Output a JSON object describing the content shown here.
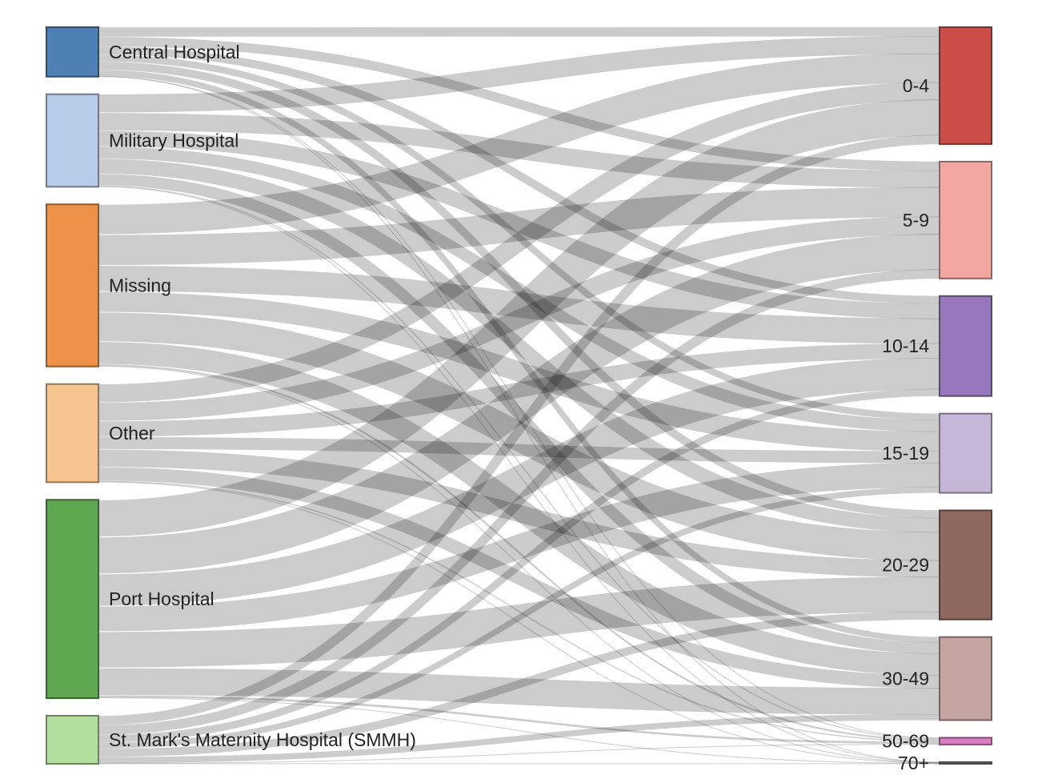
{
  "chart_data": {
    "type": "sankey",
    "source_nodes": [
      {
        "name": "Central Hospital",
        "color": "#4e7fb5"
      },
      {
        "name": "Military Hospital",
        "color": "#b8cbe8"
      },
      {
        "name": "Missing",
        "color": "#ef9249"
      },
      {
        "name": "Other",
        "color": "#f6c48f"
      },
      {
        "name": "Port Hospital",
        "color": "#5fa751"
      },
      {
        "name": "St. Mark's Maternity Hospital (SMMH)",
        "color": "#b2de9e"
      }
    ],
    "target_nodes": [
      {
        "name": "0-4",
        "color": "#cb4f48"
      },
      {
        "name": "5-9",
        "color": "#f3a6a2"
      },
      {
        "name": "10-14",
        "color": "#9778bd"
      },
      {
        "name": "15-19",
        "color": "#c6b6d7"
      },
      {
        "name": "20-29",
        "color": "#8e675e"
      },
      {
        "name": "30-49",
        "color": "#c5a59f"
      },
      {
        "name": "50-69",
        "color": "#da7ec2"
      },
      {
        "name": "70+",
        "color": "#7f7f7f"
      }
    ],
    "links": [
      {
        "source": "Central Hospital",
        "target": "0-4",
        "value": 70
      },
      {
        "source": "Central Hospital",
        "target": "5-9",
        "value": 70
      },
      {
        "source": "Central Hospital",
        "target": "10-14",
        "value": 60
      },
      {
        "source": "Central Hospital",
        "target": "15-19",
        "value": 50
      },
      {
        "source": "Central Hospital",
        "target": "20-29",
        "value": 60
      },
      {
        "source": "Central Hospital",
        "target": "30-49",
        "value": 45
      },
      {
        "source": "Central Hospital",
        "target": "50-69",
        "value": 4
      },
      {
        "source": "Central Hospital",
        "target": "70+",
        "value": 1
      },
      {
        "source": "Military Hospital",
        "target": "0-4",
        "value": 135
      },
      {
        "source": "Military Hospital",
        "target": "5-9",
        "value": 130
      },
      {
        "source": "Military Hospital",
        "target": "10-14",
        "value": 115
      },
      {
        "source": "Military Hospital",
        "target": "15-19",
        "value": 90
      },
      {
        "source": "Military Hospital",
        "target": "20-29",
        "value": 110
      },
      {
        "source": "Military Hospital",
        "target": "30-49",
        "value": 85
      },
      {
        "source": "Military Hospital",
        "target": "50-69",
        "value": 7
      },
      {
        "source": "Military Hospital",
        "target": "70+",
        "value": 2
      },
      {
        "source": "Missing",
        "target": "0-4",
        "value": 220
      },
      {
        "source": "Missing",
        "target": "5-9",
        "value": 225
      },
      {
        "source": "Missing",
        "target": "10-14",
        "value": 190
      },
      {
        "source": "Missing",
        "target": "15-19",
        "value": 150
      },
      {
        "source": "Missing",
        "target": "20-29",
        "value": 215
      },
      {
        "source": "Missing",
        "target": "30-49",
        "value": 165
      },
      {
        "source": "Missing",
        "target": "50-69",
        "value": 13
      },
      {
        "source": "Missing",
        "target": "70+",
        "value": 3
      },
      {
        "source": "Other",
        "target": "0-4",
        "value": 135
      },
      {
        "source": "Other",
        "target": "5-9",
        "value": 135
      },
      {
        "source": "Other",
        "target": "10-14",
        "value": 115
      },
      {
        "source": "Other",
        "target": "15-19",
        "value": 90
      },
      {
        "source": "Other",
        "target": "20-29",
        "value": 130
      },
      {
        "source": "Other",
        "target": "30-49",
        "value": 100
      },
      {
        "source": "Other",
        "target": "50-69",
        "value": 8
      },
      {
        "source": "Other",
        "target": "70+",
        "value": 2
      },
      {
        "source": "Port Hospital",
        "target": "0-4",
        "value": 270
      },
      {
        "source": "Port Hospital",
        "target": "5-9",
        "value": 270
      },
      {
        "source": "Port Hospital",
        "target": "10-14",
        "value": 235
      },
      {
        "source": "Port Hospital",
        "target": "15-19",
        "value": 185
      },
      {
        "source": "Port Hospital",
        "target": "20-29",
        "value": 265
      },
      {
        "source": "Port Hospital",
        "target": "30-49",
        "value": 200
      },
      {
        "source": "Port Hospital",
        "target": "50-69",
        "value": 16
      },
      {
        "source": "Port Hospital",
        "target": "70+",
        "value": 4
      },
      {
        "source": "St. Mark's Maternity Hospital (SMMH)",
        "target": "0-4",
        "value": 70
      },
      {
        "source": "St. Mark's Maternity Hospital (SMMH)",
        "target": "5-9",
        "value": 70
      },
      {
        "source": "St. Mark's Maternity Hospital (SMMH)",
        "target": "10-14",
        "value": 55
      },
      {
        "source": "St. Mark's Maternity Hospital (SMMH)",
        "target": "15-19",
        "value": 45
      },
      {
        "source": "St. Mark's Maternity Hospital (SMMH)",
        "target": "20-29",
        "value": 60
      },
      {
        "source": "St. Mark's Maternity Hospital (SMMH)",
        "target": "30-49",
        "value": 45
      },
      {
        "source": "St. Mark's Maternity Hospital (SMMH)",
        "target": "50-69",
        "value": 4
      },
      {
        "source": "St. Mark's Maternity Hospital (SMMH)",
        "target": "70+",
        "value": 1
      }
    ]
  }
}
